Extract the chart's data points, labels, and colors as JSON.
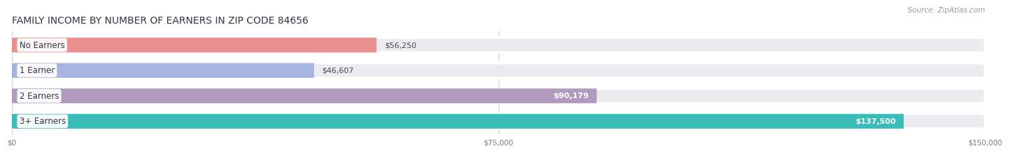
{
  "title": "FAMILY INCOME BY NUMBER OF EARNERS IN ZIP CODE 84656",
  "source": "Source: ZipAtlas.com",
  "categories": [
    "No Earners",
    "1 Earner",
    "2 Earners",
    "3+ Earners"
  ],
  "values": [
    56250,
    46607,
    90179,
    137500
  ],
  "bar_colors": [
    "#e89090",
    "#a8b4e0",
    "#b09abe",
    "#3abcb8"
  ],
  "bar_bg_color": "#ebebf0",
  "label_colors_dark": [
    true,
    true,
    false,
    false
  ],
  "value_labels": [
    "$56,250",
    "$46,607",
    "$90,179",
    "$137,500"
  ],
  "xmax": 150000,
  "xticks": [
    0,
    75000,
    150000
  ],
  "xtick_labels": [
    "$0",
    "$75,000",
    "$150,000"
  ],
  "fig_bg_color": "#ffffff",
  "bar_area_bg": "#f5f5f8",
  "title_color": "#333344",
  "title_fontsize": 10,
  "source_fontsize": 7.5,
  "label_fontsize": 8.5,
  "value_fontsize": 8
}
